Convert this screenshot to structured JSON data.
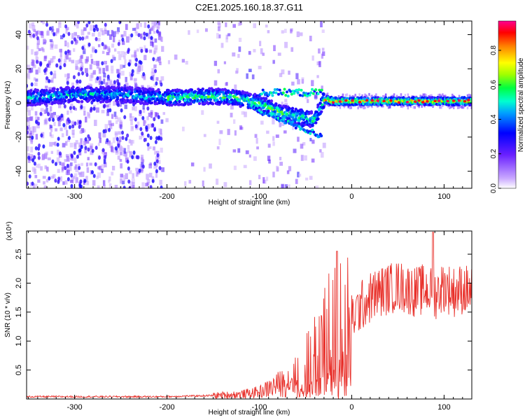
{
  "title": "C2E1.2025.160.18.37.G11",
  "chart_data": [
    {
      "type": "heatmap",
      "xlabel": "Height of straight line (km)",
      "ylabel": "Frequency (Hz)",
      "xlim": [
        -352,
        130
      ],
      "ylim": [
        -50,
        48
      ],
      "xticks": [
        -300,
        -200,
        -100,
        0,
        100
      ],
      "yticks": [
        -40,
        -20,
        0,
        20,
        40
      ],
      "colorbar": {
        "label": "Normalized spectral amplitude",
        "range": [
          0,
          0.97
        ],
        "ticks": [
          0.0,
          0.2,
          0.4,
          0.6,
          0.8
        ],
        "colors": [
          "#ffffff",
          "#b070ff",
          "#0000ff",
          "#00ccff",
          "#00ff80",
          "#ffff00",
          "#ff8000",
          "#ff0000",
          "#ff00aa"
        ]
      },
      "ridge": {
        "x": [
          -350,
          -300,
          -250,
          -200,
          -150,
          -125,
          -100,
          -80,
          -60,
          -40,
          -30,
          -20,
          0,
          50,
          100,
          130
        ],
        "y": [
          3,
          5,
          5,
          3,
          4,
          3,
          0,
          -5,
          -8,
          -10,
          2,
          1,
          1,
          1,
          1,
          1
        ]
      }
    },
    {
      "type": "line",
      "xlabel": "Height of straight line (km)",
      "ylabel": "SNR (10 * v/v)",
      "y_multiplier": "(x10⁴)",
      "xlim": [
        -352,
        130
      ],
      "ylim": [
        0,
        2.9
      ],
      "xticks": [
        -300,
        -200,
        -100,
        0,
        100
      ],
      "yticks": [
        0.5,
        1.0,
        1.5,
        2.0,
        2.5
      ],
      "series": [
        {
          "color": "#e8302a",
          "x": [
            -350,
            -300,
            -250,
            -200,
            -180,
            -150,
            -120,
            -100,
            -90,
            -80,
            -70,
            -60,
            -50,
            -40,
            -30,
            -20,
            -15,
            -10,
            0,
            10,
            20,
            30,
            40,
            50,
            60,
            70,
            80,
            90,
            100,
            110,
            120,
            130
          ],
          "y": [
            0.04,
            0.04,
            0.04,
            0.04,
            0.05,
            0.06,
            0.08,
            0.12,
            0.18,
            0.25,
            0.3,
            0.4,
            0.55,
            0.8,
            1.0,
            1.2,
            1.3,
            1.15,
            1.4,
            1.6,
            1.75,
            1.85,
            1.9,
            1.95,
            1.9,
            1.85,
            1.9,
            1.8,
            1.95,
            1.85,
            1.9,
            1.85
          ]
        }
      ]
    }
  ]
}
